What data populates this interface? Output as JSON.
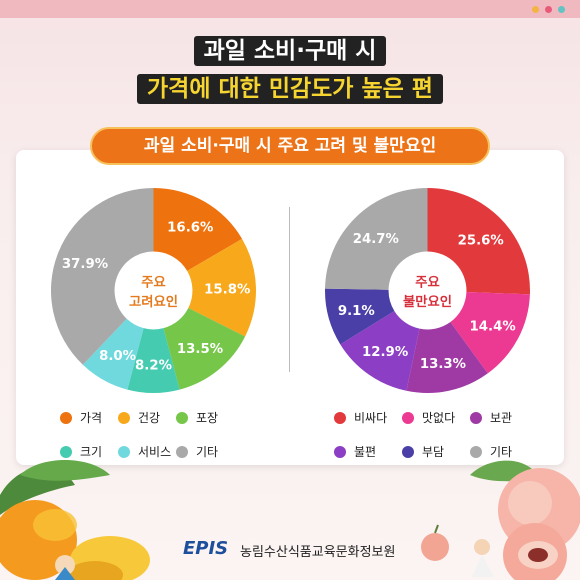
{
  "header": {
    "title_line1": "과일 소비·구매 시",
    "title_line2": "가격에 대한 민감도가 높은 편",
    "dots": [
      "#f4b342",
      "#e95a7a",
      "#63c3c3"
    ]
  },
  "banner": {
    "text": "과일 소비·구매 시 주요 고려 및 불만요인"
  },
  "chart_data": [
    {
      "type": "pie",
      "center_label": [
        "주요",
        "고려요인"
      ],
      "center_color": "#e37a1e",
      "categories": [
        "가격",
        "건강",
        "포장",
        "크기",
        "서비스",
        "기타"
      ],
      "values": [
        16.6,
        15.8,
        13.5,
        8.2,
        8.0,
        37.9
      ],
      "value_labels": [
        "16.6%",
        "15.8%",
        "13.5%",
        "8.2%",
        "8.0%",
        "37.9%"
      ],
      "colors": [
        "#ee720e",
        "#f7a81b",
        "#76c64a",
        "#45cbb0",
        "#6fd9dd",
        "#a9a9a9"
      ]
    },
    {
      "type": "pie",
      "center_label": [
        "주요",
        "불만요인"
      ],
      "center_color": "#d7303b",
      "categories": [
        "비싸다",
        "맛없다",
        "보관",
        "불편",
        "부담",
        "기타"
      ],
      "values": [
        25.6,
        14.4,
        13.3,
        12.9,
        9.1,
        24.7
      ],
      "value_labels": [
        "25.6%",
        "14.4%",
        "13.3%",
        "12.9%",
        "9.1%",
        "24.7%"
      ],
      "colors": [
        "#e23a3c",
        "#ec3a92",
        "#9f3aa5",
        "#8c3fc4",
        "#4a3fa6",
        "#a9a9a9"
      ]
    }
  ],
  "footer": {
    "logo": "EPIS",
    "org": "농림수산식품교육문화정보원"
  }
}
